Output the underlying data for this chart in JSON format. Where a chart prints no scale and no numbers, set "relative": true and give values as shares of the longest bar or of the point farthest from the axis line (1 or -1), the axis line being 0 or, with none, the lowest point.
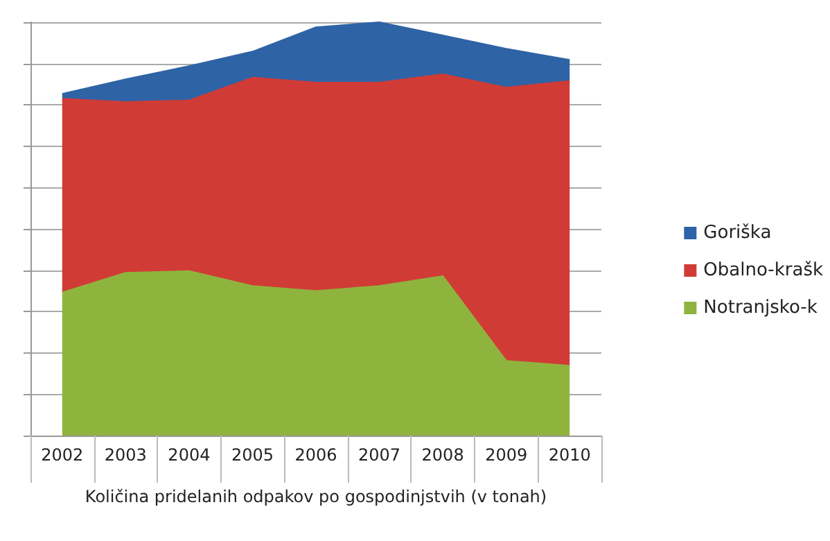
{
  "chart_data": {
    "type": "area",
    "xlabel": "Količina pridelanih odpakov po gospodinjstvih (v tonah)",
    "categories": [
      "2002",
      "2003",
      "2004",
      "2005",
      "2006",
      "2007",
      "2008",
      "2009",
      "2010"
    ],
    "relative": true,
    "stacked": true,
    "grid": "y",
    "legend": "right",
    "series": [
      {
        "name": "Notranjsko-k",
        "color": "#8fb43e",
        "values": [
          0.346,
          0.394,
          0.398,
          0.362,
          0.35,
          0.362,
          0.386,
          0.181,
          0.169
        ]
      },
      {
        "name": "Obalno-krašk",
        "color": "#d13b36",
        "values": [
          0.469,
          0.413,
          0.413,
          0.504,
          0.504,
          0.492,
          0.488,
          0.661,
          0.689
        ]
      },
      {
        "name": "Goriška",
        "color": "#2e63a6",
        "values": [
          0.012,
          0.055,
          0.083,
          0.063,
          0.134,
          0.146,
          0.094,
          0.094,
          0.051
        ]
      }
    ]
  }
}
